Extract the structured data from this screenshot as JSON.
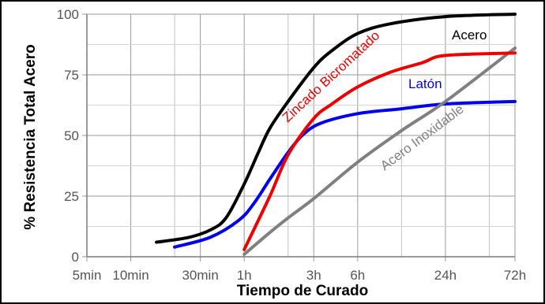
{
  "chart_data": {
    "type": "line",
    "title": "",
    "xlabel": "Tiempo de Curado",
    "ylabel": "% Resistencia Total Acero",
    "x_scale": "log",
    "x_ticks": [
      {
        "label": "5min",
        "minutes": 5
      },
      {
        "label": "10min",
        "minutes": 10
      },
      {
        "label": "30min",
        "minutes": 30
      },
      {
        "label": "1h",
        "minutes": 60
      },
      {
        "label": "3h",
        "minutes": 180
      },
      {
        "label": "6h",
        "minutes": 360
      },
      {
        "label": "24h",
        "minutes": 1440
      },
      {
        "label": "72h",
        "minutes": 4320
      }
    ],
    "y_ticks": [
      0,
      25,
      50,
      75,
      100
    ],
    "ylim": [
      0,
      100
    ],
    "grid": true,
    "legend": "none",
    "series": [
      {
        "name": "Acero",
        "color": "#000000",
        "points": [
          [
            15,
            6
          ],
          [
            25,
            8
          ],
          [
            35,
            11
          ],
          [
            45,
            16
          ],
          [
            60,
            30
          ],
          [
            75,
            43
          ],
          [
            90,
            53
          ],
          [
            120,
            64
          ],
          [
            180,
            78
          ],
          [
            240,
            85
          ],
          [
            360,
            92
          ],
          [
            600,
            96
          ],
          [
            1440,
            99
          ],
          [
            4320,
            100
          ]
        ]
      },
      {
        "name": "Zincado Bicromatado",
        "color": "#ee0000",
        "points": [
          [
            60,
            3
          ],
          [
            90,
            25
          ],
          [
            120,
            42
          ],
          [
            180,
            57
          ],
          [
            240,
            63
          ],
          [
            360,
            70
          ],
          [
            600,
            76
          ],
          [
            1000,
            80
          ],
          [
            1440,
            83
          ],
          [
            4320,
            84
          ]
        ]
      },
      {
        "name": "Latón",
        "color": "#0000ee",
        "points": [
          [
            20,
            4
          ],
          [
            35,
            8
          ],
          [
            55,
            15
          ],
          [
            70,
            22
          ],
          [
            90,
            32
          ],
          [
            120,
            43
          ],
          [
            150,
            50
          ],
          [
            200,
            55
          ],
          [
            360,
            59
          ],
          [
            720,
            61
          ],
          [
            1440,
            63
          ],
          [
            4320,
            64
          ]
        ]
      },
      {
        "name": "Acero Inoxidable",
        "color": "#808080",
        "points": [
          [
            60,
            1
          ],
          [
            90,
            10
          ],
          [
            120,
            16
          ],
          [
            180,
            24
          ],
          [
            360,
            39
          ],
          [
            720,
            52
          ],
          [
            1440,
            64
          ],
          [
            4320,
            86
          ]
        ]
      }
    ]
  }
}
